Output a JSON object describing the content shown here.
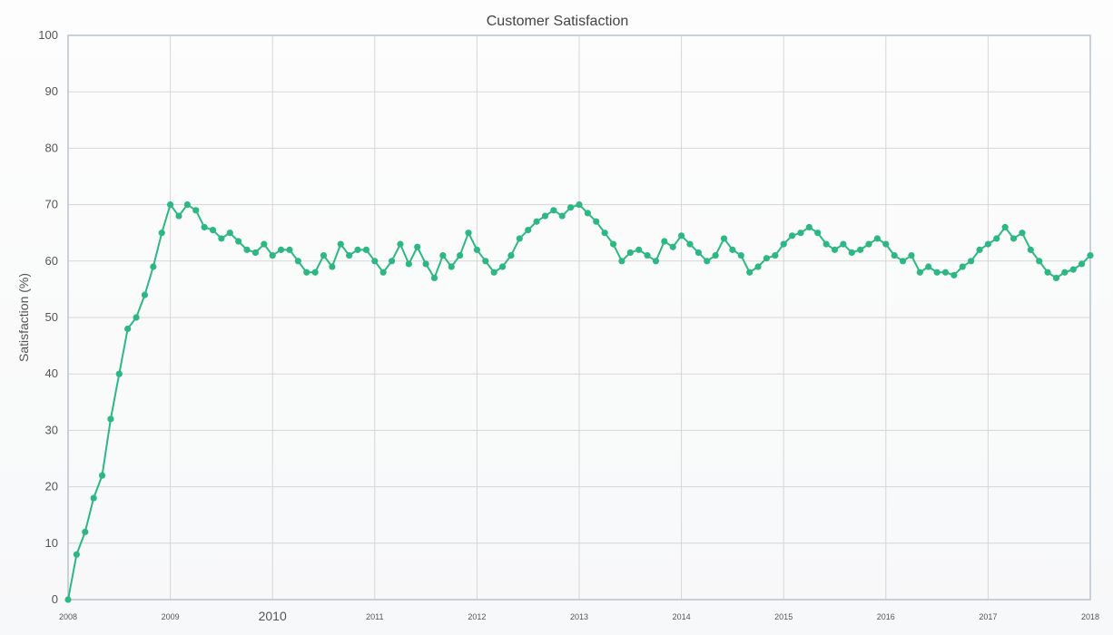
{
  "chart_data": {
    "type": "line",
    "title": "Customer Satisfaction",
    "xlabel": "",
    "ylabel": "Satisfaction (%)",
    "xlim": [
      2008,
      2018
    ],
    "ylim": [
      0,
      100
    ],
    "grid": true,
    "legend": "none",
    "y_ticks": [
      "0",
      "10",
      "20",
      "30",
      "40",
      "50",
      "60",
      "70",
      "80",
      "90",
      "100"
    ],
    "x_ticks": [
      "2008",
      "2009",
      "2010",
      "2011",
      "2012",
      "2013",
      "2014",
      "2015",
      "2016",
      "2017",
      "2018"
    ],
    "colors": {
      "series": "#2db783",
      "grid": "#d6d6d6",
      "border": "#b9c3cc"
    },
    "series": [
      {
        "x": [
          "2008-01",
          "2008-02",
          "2008-03",
          "2008-04",
          "2008-05",
          "2008-06",
          "2008-07",
          "2008-08",
          "2008-09",
          "2008-10",
          "2008-11",
          "2008-12",
          "2009-01",
          "2009-02",
          "2009-03",
          "2009-04",
          "2009-05",
          "2009-06",
          "2009-07",
          "2009-08",
          "2009-09",
          "2009-10",
          "2009-11",
          "2009-12",
          "2010-01",
          "2010-02",
          "2010-03",
          "2010-04",
          "2010-05",
          "2010-06",
          "2010-07",
          "2010-08",
          "2010-09",
          "2010-10",
          "2010-11",
          "2010-12",
          "2011-01",
          "2011-02",
          "2011-03",
          "2011-04",
          "2011-05",
          "2011-06",
          "2011-07",
          "2011-08",
          "2011-09",
          "2011-10",
          "2011-11",
          "2011-12",
          "2012-01",
          "2012-02",
          "2012-03",
          "2012-04",
          "2012-05",
          "2012-06",
          "2012-07",
          "2012-08",
          "2012-09",
          "2012-10",
          "2012-11",
          "2012-12",
          "2013-01",
          "2013-02",
          "2013-03",
          "2013-04",
          "2013-05",
          "2013-06",
          "2013-07",
          "2013-08",
          "2013-09",
          "2013-10",
          "2013-11",
          "2013-12",
          "2014-01",
          "2014-02",
          "2014-03",
          "2014-04",
          "2014-05",
          "2014-06",
          "2014-07",
          "2014-08",
          "2014-09",
          "2014-10",
          "2014-11",
          "2014-12",
          "2015-01",
          "2015-02",
          "2015-03",
          "2015-04",
          "2015-05",
          "2015-06",
          "2015-07",
          "2015-08",
          "2015-09",
          "2015-10",
          "2015-11",
          "2015-12",
          "2016-01",
          "2016-02",
          "2016-03",
          "2016-04",
          "2016-05",
          "2016-06",
          "2016-07",
          "2016-08",
          "2016-09",
          "2016-10",
          "2016-11",
          "2016-12",
          "2017-01",
          "2017-02",
          "2017-03",
          "2017-04",
          "2017-05",
          "2017-06",
          "2017-07",
          "2017-08",
          "2017-09",
          "2017-10",
          "2017-11",
          "2017-12",
          "2018-01"
        ],
        "y": [
          0,
          8,
          12,
          18,
          22,
          32,
          40,
          48,
          50,
          54,
          59,
          65,
          70,
          68,
          70,
          69,
          66,
          65.5,
          64,
          65,
          63.5,
          62,
          61.5,
          63,
          61,
          62,
          62,
          60,
          58,
          58,
          61,
          59,
          63,
          61,
          62,
          62,
          60,
          58,
          60,
          63,
          59.5,
          62.5,
          59.5,
          57,
          61,
          59,
          61,
          65,
          62,
          60,
          58,
          59,
          61,
          64,
          65.5,
          67,
          68,
          69,
          68,
          69.5,
          70,
          68.5,
          67,
          65,
          63,
          60,
          61.5,
          62,
          61,
          60,
          63.5,
          62.5,
          64.5,
          63,
          61.5,
          60,
          61,
          64,
          62,
          61,
          58,
          59,
          60.5,
          61,
          63,
          64.5,
          65,
          66,
          65,
          63,
          62,
          63,
          61.5,
          62,
          63,
          64,
          63,
          61,
          60,
          61,
          58,
          59,
          58,
          58,
          57.5,
          59,
          60,
          62,
          63,
          64,
          66,
          64,
          65,
          62,
          60,
          58,
          57,
          58,
          58.5,
          59.5,
          61
        ]
      }
    ]
  }
}
